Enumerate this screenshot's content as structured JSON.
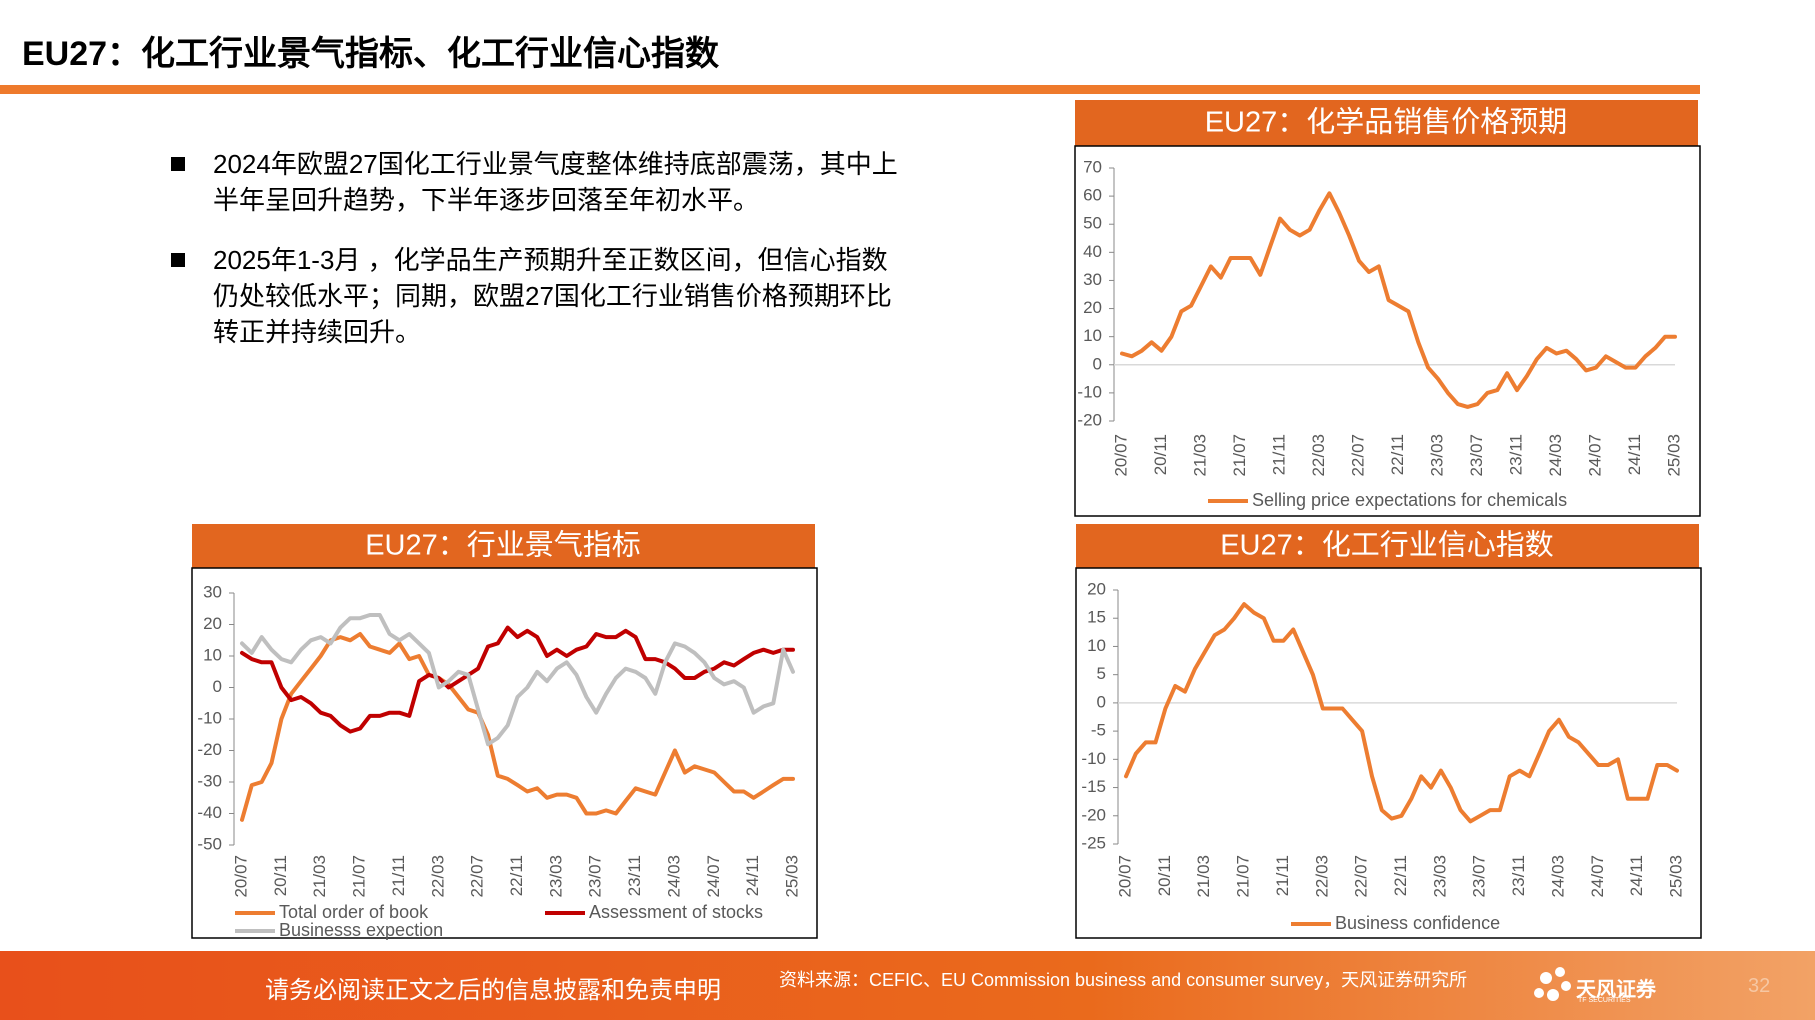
{
  "header": {
    "title": "EU27：化工行业景气指标、化工行业信心指数"
  },
  "bullets": [
    "2024年欧盟27国化工行业景气度整体维持底部震荡，其中上半年呈回升趋势，下半年逐步回落至年初水平。",
    "2025年1-3月 ，化学品生产预期升至正数区间，但信心指数仍处较低水平；同期，欧盟27国化工行业销售价格预期环比转正并持续回升。"
  ],
  "chart_data": [
    {
      "type": "line",
      "title": "EU27：化学品销售价格预期",
      "categories": [
        "20/07",
        null,
        null,
        null,
        "20/11",
        null,
        null,
        null,
        "21/03",
        null,
        null,
        null,
        "21/07",
        null,
        null,
        null,
        "21/11",
        null,
        null,
        null,
        "22/03",
        null,
        null,
        null,
        "22/07",
        null,
        null,
        null,
        "22/11",
        null,
        null,
        null,
        "23/03",
        null,
        null,
        null,
        "23/07",
        null,
        null,
        null,
        "23/11",
        null,
        null,
        null,
        "24/03",
        null,
        null,
        null,
        "24/07",
        null,
        null,
        null,
        "24/11",
        null,
        null,
        null,
        "25/03"
      ],
      "ylim": [
        -20,
        70
      ],
      "yticks": [
        -20,
        -10,
        0,
        10,
        20,
        30,
        40,
        50,
        60,
        70
      ],
      "series": [
        {
          "name": "Selling price expectations for chemicals",
          "color": "#ED7D31",
          "values": [
            4,
            3,
            5,
            8,
            5,
            10,
            19,
            21,
            28,
            35,
            31,
            38,
            38,
            38,
            32,
            42,
            52,
            48,
            46,
            48,
            55,
            61,
            54,
            46,
            37,
            33,
            35,
            23,
            21,
            19,
            8,
            -1,
            -5,
            -10,
            -14,
            -15,
            -14,
            -10,
            -9,
            -3,
            -9,
            -4,
            2,
            6,
            4,
            5,
            2,
            -2,
            -1,
            3,
            1,
            -1,
            -1,
            3,
            6,
            10,
            10
          ]
        }
      ]
    },
    {
      "type": "line",
      "title": "EU27：行业景气指标",
      "categories": [
        "20/07",
        null,
        null,
        null,
        "20/11",
        null,
        null,
        null,
        "21/03",
        null,
        null,
        null,
        "21/07",
        null,
        null,
        null,
        "21/11",
        null,
        null,
        null,
        "22/03",
        null,
        null,
        null,
        "22/07",
        null,
        null,
        null,
        "22/11",
        null,
        null,
        null,
        "23/03",
        null,
        null,
        null,
        "23/07",
        null,
        null,
        null,
        "23/11",
        null,
        null,
        null,
        "24/03",
        null,
        null,
        null,
        "24/07",
        null,
        null,
        null,
        "24/11",
        null,
        null,
        null,
        "25/03"
      ],
      "ylim": [
        -50,
        30
      ],
      "yticks": [
        -50,
        -40,
        -30,
        -20,
        -10,
        0,
        10,
        20,
        30
      ],
      "series": [
        {
          "name": "Total order of book",
          "color": "#ED7D31",
          "values": [
            -42,
            -31,
            -30,
            -24,
            -10,
            -2,
            2,
            6,
            10,
            15,
            16,
            15,
            17,
            13,
            12,
            11,
            14,
            9,
            10,
            4,
            3,
            1,
            -3,
            -7,
            -8,
            -15,
            -28,
            -29,
            -31,
            -33,
            -32,
            -35,
            -34,
            -34,
            -35,
            -40,
            -40,
            -39,
            -40,
            -36,
            -32,
            -33,
            -34,
            -27,
            -20,
            -27,
            -25,
            -26,
            -27,
            -30,
            -33,
            -33,
            -35,
            -33,
            -31,
            -29,
            -29
          ]
        },
        {
          "name": "Assessment of stocks",
          "color": "#C00000",
          "values": [
            11,
            9,
            8,
            8,
            0,
            -4,
            -3,
            -5,
            -8,
            -9,
            -12,
            -14,
            -13,
            -9,
            -9,
            -8,
            -8,
            -9,
            2,
            4,
            3,
            0,
            2,
            4,
            6,
            13,
            14,
            19,
            16,
            18,
            16,
            10,
            12,
            10,
            12,
            13,
            17,
            16,
            16,
            18,
            16,
            9,
            9,
            8,
            6,
            3,
            3,
            5,
            6,
            8,
            7,
            9,
            11,
            12,
            11,
            12,
            12
          ]
        },
        {
          "name": "Businesss expection",
          "color": "#BFBFBF",
          "values": [
            14,
            11,
            16,
            12,
            9,
            8,
            12,
            15,
            16,
            14,
            19,
            22,
            22,
            23,
            23,
            17,
            15,
            17,
            14,
            11,
            0,
            2,
            5,
            4,
            -7,
            -18,
            -16,
            -12,
            -3,
            0,
            5,
            2,
            6,
            8,
            4,
            -3,
            -8,
            -2,
            3,
            6,
            5,
            3,
            -2,
            8,
            14,
            13,
            11,
            8,
            3,
            1,
            2,
            0,
            -8,
            -6,
            -5,
            12,
            5
          ]
        }
      ]
    },
    {
      "type": "line",
      "title": "EU27：化工行业信心指数",
      "categories": [
        "20/07",
        null,
        null,
        null,
        "20/11",
        null,
        null,
        null,
        "21/03",
        null,
        null,
        null,
        "21/07",
        null,
        null,
        null,
        "21/11",
        null,
        null,
        null,
        "22/03",
        null,
        null,
        null,
        "22/07",
        null,
        null,
        null,
        "22/11",
        null,
        null,
        null,
        "23/03",
        null,
        null,
        null,
        "23/07",
        null,
        null,
        null,
        "23/11",
        null,
        null,
        null,
        "24/03",
        null,
        null,
        null,
        "24/07",
        null,
        null,
        null,
        "24/11",
        null,
        null,
        null,
        "25/03"
      ],
      "ylim": [
        -25,
        20
      ],
      "yticks": [
        -25,
        -20,
        -15,
        -10,
        -5,
        0,
        5,
        10,
        15,
        20
      ],
      "series": [
        {
          "name": "Business confidence",
          "color": "#ED7D31",
          "values": [
            -13,
            -9,
            -7,
            -7,
            -1,
            3,
            2,
            6,
            9,
            12,
            13,
            15,
            17.5,
            16,
            15,
            11,
            11,
            13,
            9,
            5,
            -1,
            -1,
            -1,
            -3,
            -5,
            -13,
            -19,
            -20.5,
            -20,
            -17,
            -13,
            -15,
            -12,
            -15,
            -19,
            -21,
            -20,
            -19,
            -19,
            -13,
            -12,
            -13,
            -9,
            -5,
            -3,
            -6,
            -7,
            -9,
            -11,
            -11,
            -10,
            -17,
            -17,
            -17,
            -11,
            -11,
            -12
          ]
        }
      ]
    }
  ],
  "footer": {
    "disclaimer": "请务必阅读正文之后的信息披露和免责申明",
    "source": "资料来源：CEFIC、EU Commission business and consumer survey，天风证券研究所",
    "logo": "天风证券",
    "logo_sub": "TF SECURITIES",
    "page": "32"
  }
}
